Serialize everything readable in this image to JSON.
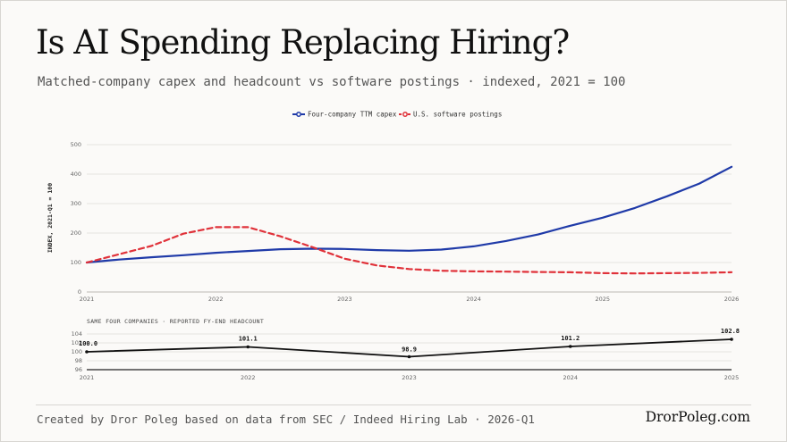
{
  "header": {
    "title": "Is AI Spending Replacing Hiring?",
    "subtitle": "Matched-company capex and headcount vs software postings · indexed, 2021 = 100"
  },
  "footer": {
    "source": "Created by Dror Poleg based on data from SEC / Indeed Hiring Lab · 2026-Q1",
    "brand": "DrorPoleg.com"
  },
  "colors": {
    "capex": "#1f3aa8",
    "postings": "#e0323a",
    "headcount": "#111111",
    "grid": "#e6e4e0"
  },
  "chart_data": [
    {
      "type": "line",
      "legend": "top-center",
      "grid": true,
      "ylabel": "INDEX, 2021-Q1 = 100",
      "xlim": [
        2021,
        2026
      ],
      "ylim": [
        0,
        500
      ],
      "xticks": [
        "2021",
        "2022",
        "2023",
        "2024",
        "2025",
        "2026"
      ],
      "yticks": [
        "0",
        "100",
        "200",
        "300",
        "400",
        "500"
      ],
      "series": [
        {
          "name": "Four-company TTM capex",
          "style": "solid",
          "x": [
            2021.0,
            2021.25,
            2021.5,
            2021.75,
            2022.0,
            2022.25,
            2022.5,
            2022.75,
            2023.0,
            2023.25,
            2023.5,
            2023.75,
            2024.0,
            2024.25,
            2024.5,
            2024.75,
            2025.0,
            2025.25,
            2025.5,
            2025.75,
            2026.0
          ],
          "y": [
            100,
            110,
            118,
            125,
            133,
            139,
            145,
            147,
            146,
            142,
            140,
            144,
            155,
            173,
            195,
            225,
            252,
            285,
            325,
            368,
            425
          ]
        },
        {
          "name": "U.S. software postings",
          "style": "dashed",
          "x": [
            2021.0,
            2021.25,
            2021.5,
            2021.75,
            2022.0,
            2022.25,
            2022.5,
            2022.75,
            2023.0,
            2023.25,
            2023.5,
            2023.75,
            2024.0,
            2024.25,
            2024.5,
            2024.75,
            2025.0,
            2025.25,
            2025.5,
            2025.75,
            2026.0
          ],
          "y": [
            100,
            128,
            156,
            198,
            220,
            220,
            189,
            152,
            113,
            90,
            78,
            72,
            70,
            69,
            68,
            67,
            64,
            63,
            64,
            65,
            67
          ]
        }
      ]
    },
    {
      "type": "line",
      "title": "SAME FOUR COMPANIES · REPORTED FY-END HEADCOUNT",
      "grid": true,
      "xlim": [
        2021,
        2025
      ],
      "ylim": [
        96,
        104
      ],
      "xticks": [
        "2021",
        "2022",
        "2023",
        "2024",
        "2025"
      ],
      "yticks": [
        "96",
        "98",
        "100",
        "102",
        "104"
      ],
      "series": [
        {
          "name": "Headcount",
          "x": [
            2021,
            2022,
            2023,
            2024,
            2025
          ],
          "y": [
            100.0,
            101.1,
            98.9,
            101.2,
            102.8
          ],
          "labels": [
            "100.0",
            "101.1",
            "98.9",
            "101.2",
            "102.8"
          ]
        }
      ]
    }
  ]
}
